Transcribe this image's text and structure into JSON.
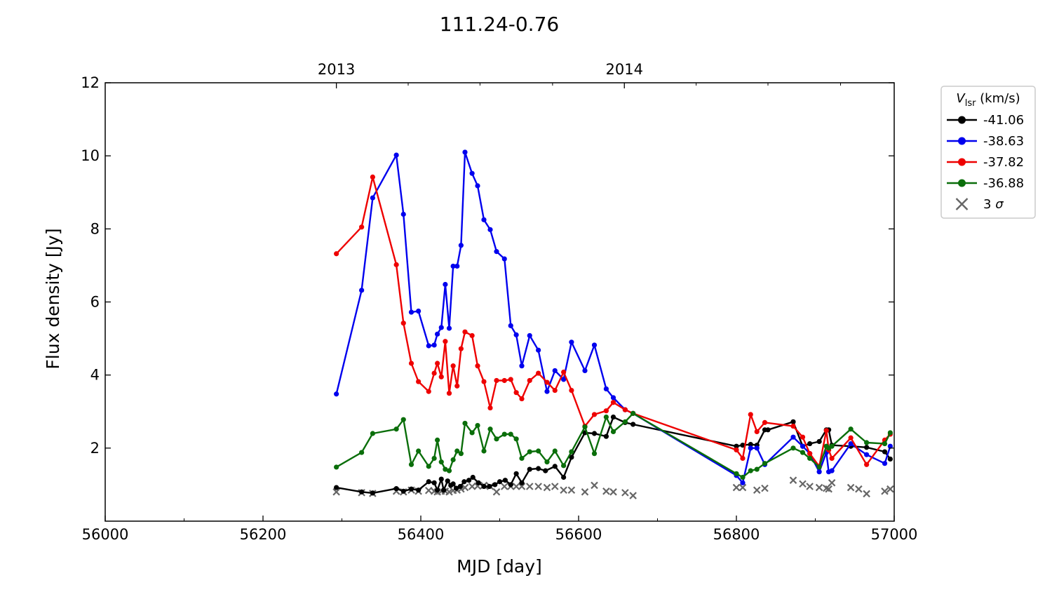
{
  "chart_data": {
    "type": "line",
    "title": "111.24-0.76",
    "xlabel": "MJD [day]",
    "ylabel": "Flux density [Jy]",
    "xlim": [
      56000,
      57000
    ],
    "ylim": [
      0,
      12
    ],
    "xticks": [
      56000,
      56200,
      56400,
      56600,
      56800,
      57000
    ],
    "xminor": [
      56100,
      56300,
      56500,
      56700,
      56900
    ],
    "yticks": [
      2,
      4,
      6,
      8,
      10,
      12
    ],
    "top_axis": {
      "ticks": [
        {
          "x": 56293,
          "label": "2013"
        },
        {
          "x": 56658,
          "label": "2014"
        }
      ],
      "minor": [
        56384,
        56475,
        56567,
        56749,
        56840,
        56932
      ]
    },
    "legend": {
      "title_main": "V",
      "title_sub": "lsr",
      "title_unit": " (km/s)",
      "placement": "outside-right"
    },
    "series": [
      {
        "name": "-41.06",
        "color": "#000000",
        "x": [
          56293,
          56325,
          56339,
          56369,
          56378,
          56388,
          56397,
          56410,
          56417,
          56421,
          56426,
          56429,
          56434,
          56438,
          56441,
          56445,
          56450,
          56455,
          56461,
          56466,
          56473,
          56480,
          56487,
          56494,
          56500,
          56507,
          56514,
          56521,
          56528,
          56538,
          56549,
          56558,
          56570,
          56581,
          56591,
          56608,
          56620,
          56635,
          56644,
          56659,
          56669,
          56800,
          56808,
          56818,
          56826,
          56836,
          56840,
          56872,
          56884,
          56893,
          56905,
          56914,
          56917,
          56921,
          56945,
          56965,
          56988,
          56995
        ],
        "values": [
          0.92,
          0.8,
          0.77,
          0.89,
          0.82,
          0.88,
          0.85,
          1.08,
          1.05,
          0.85,
          1.15,
          0.85,
          1.1,
          0.98,
          1.02,
          0.9,
          0.95,
          1.08,
          1.12,
          1.2,
          1.05,
          0.95,
          0.95,
          1.0,
          1.08,
          1.12,
          1.0,
          1.3,
          1.05,
          1.42,
          1.44,
          1.38,
          1.5,
          1.2,
          1.75,
          2.42,
          2.4,
          2.32,
          2.85,
          2.7,
          2.65,
          2.05,
          2.08,
          2.1,
          2.08,
          2.5,
          2.5,
          2.72,
          2.05,
          2.12,
          2.18,
          2.5,
          2.5,
          2.08,
          2.05,
          2.02,
          1.9,
          1.7
        ]
      },
      {
        "name": "-38.63",
        "color": "#0000ee",
        "x": [
          56293,
          56325,
          56339,
          56369,
          56378,
          56388,
          56397,
          56410,
          56417,
          56421,
          56426,
          56431,
          56436,
          56441,
          56446,
          56451,
          56456,
          56465,
          56472,
          56480,
          56488,
          56496,
          56506,
          56514,
          56521,
          56528,
          56538,
          56549,
          56560,
          56570,
          56581,
          56591,
          56608,
          56620,
          56635,
          56644,
          56659,
          56669,
          56800,
          56808,
          56818,
          56826,
          56836,
          56872,
          56884,
          56893,
          56905,
          56914,
          56917,
          56921,
          56945,
          56965,
          56988,
          56995
        ],
        "values": [
          3.48,
          6.32,
          8.85,
          10.02,
          8.4,
          5.72,
          5.75,
          4.8,
          4.82,
          5.12,
          5.3,
          6.48,
          5.28,
          6.98,
          6.98,
          7.55,
          10.1,
          9.52,
          9.18,
          8.25,
          7.98,
          7.38,
          7.18,
          5.35,
          5.1,
          4.25,
          5.08,
          4.68,
          3.55,
          4.12,
          3.88,
          4.9,
          4.12,
          4.82,
          3.62,
          3.38,
          3.05,
          2.95,
          1.25,
          1.05,
          2.0,
          2.0,
          1.55,
          2.3,
          2.05,
          1.85,
          1.35,
          1.88,
          1.35,
          1.38,
          2.12,
          1.82,
          1.58,
          2.05
        ]
      },
      {
        "name": "-37.82",
        "color": "#ee0000",
        "x": [
          56293,
          56325,
          56339,
          56369,
          56378,
          56388,
          56397,
          56410,
          56417,
          56421,
          56426,
          56431,
          56436,
          56441,
          56446,
          56451,
          56456,
          56465,
          56472,
          56480,
          56488,
          56496,
          56506,
          56514,
          56521,
          56528,
          56538,
          56549,
          56560,
          56570,
          56581,
          56591,
          56608,
          56620,
          56635,
          56644,
          56659,
          56669,
          56800,
          56808,
          56818,
          56826,
          56836,
          56872,
          56884,
          56893,
          56905,
          56914,
          56917,
          56921,
          56945,
          56965,
          56988,
          56995
        ],
        "values": [
          7.32,
          8.05,
          9.42,
          7.02,
          5.42,
          4.32,
          3.82,
          3.55,
          4.05,
          4.32,
          3.95,
          4.92,
          3.5,
          4.25,
          3.7,
          4.72,
          5.18,
          5.08,
          4.25,
          3.82,
          3.1,
          3.85,
          3.85,
          3.88,
          3.52,
          3.35,
          3.85,
          4.05,
          3.8,
          3.58,
          4.08,
          3.58,
          2.6,
          2.92,
          3.02,
          3.25,
          3.05,
          2.95,
          1.95,
          1.72,
          2.92,
          2.45,
          2.7,
          2.6,
          2.3,
          1.85,
          1.5,
          2.48,
          1.95,
          1.72,
          2.28,
          1.55,
          2.22,
          2.38
        ]
      },
      {
        "name": "-36.88",
        "color": "#0a6e0a",
        "x": [
          56293,
          56325,
          56339,
          56369,
          56378,
          56388,
          56397,
          56410,
          56417,
          56421,
          56426,
          56431,
          56436,
          56441,
          56446,
          56451,
          56456,
          56465,
          56472,
          56480,
          56488,
          56496,
          56506,
          56514,
          56521,
          56528,
          56538,
          56549,
          56560,
          56570,
          56581,
          56591,
          56608,
          56620,
          56635,
          56644,
          56659,
          56669,
          56800,
          56808,
          56818,
          56826,
          56836,
          56872,
          56884,
          56893,
          56905,
          56914,
          56917,
          56921,
          56945,
          56965,
          56988,
          56995
        ],
        "values": [
          1.48,
          1.88,
          2.4,
          2.52,
          2.78,
          1.55,
          1.92,
          1.5,
          1.72,
          2.22,
          1.62,
          1.42,
          1.38,
          1.68,
          1.92,
          1.85,
          2.68,
          2.42,
          2.62,
          1.92,
          2.52,
          2.25,
          2.38,
          2.38,
          2.25,
          1.72,
          1.9,
          1.92,
          1.62,
          1.92,
          1.52,
          1.9,
          2.58,
          1.85,
          2.85,
          2.45,
          2.72,
          2.95,
          1.3,
          1.2,
          1.38,
          1.42,
          1.58,
          2.0,
          1.88,
          1.72,
          1.48,
          2.05,
          2.0,
          2.05,
          2.52,
          2.15,
          2.12,
          2.42
        ]
      }
    ],
    "threshold": {
      "name": "3 σ",
      "color": "#666666",
      "x": [
        56293,
        56325,
        56339,
        56369,
        56378,
        56388,
        56397,
        56410,
        56417,
        56421,
        56426,
        56431,
        56436,
        56441,
        56446,
        56451,
        56456,
        56465,
        56472,
        56480,
        56488,
        56496,
        56506,
        56514,
        56521,
        56528,
        56538,
        56549,
        56560,
        56570,
        56581,
        56591,
        56608,
        56620,
        56635,
        56644,
        56659,
        56669,
        56800,
        56808,
        56826,
        56836,
        56872,
        56884,
        56893,
        56905,
        56914,
        56917,
        56921,
        56945,
        56955,
        56965,
        56988,
        56995
      ],
      "values": [
        0.8,
        0.78,
        0.76,
        0.82,
        0.8,
        0.85,
        0.82,
        0.84,
        0.82,
        0.8,
        0.82,
        0.82,
        0.8,
        0.84,
        0.85,
        0.88,
        0.92,
        0.95,
        0.96,
        0.98,
        0.95,
        0.8,
        0.95,
        0.95,
        0.95,
        0.95,
        0.95,
        0.95,
        0.92,
        0.95,
        0.85,
        0.85,
        0.8,
        0.98,
        0.82,
        0.8,
        0.78,
        0.7,
        0.92,
        0.92,
        0.85,
        0.9,
        1.12,
        1.02,
        0.95,
        0.92,
        0.9,
        0.88,
        1.05,
        0.92,
        0.88,
        0.75,
        0.82,
        0.88
      ]
    }
  }
}
